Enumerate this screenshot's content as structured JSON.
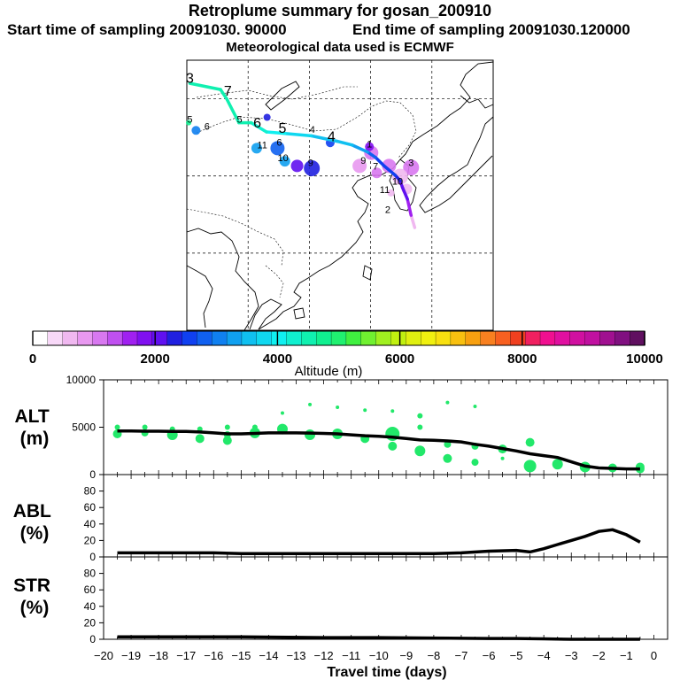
{
  "header": {
    "title": "Retroplume summary for gosan_200910",
    "start_sampling": "Start time of sampling 20091030. 90000",
    "end_sampling": "End time of sampling 20091030.120000",
    "met_data": "Meteorological data used is ECMWF"
  },
  "colorbar": {
    "ticks": [
      "0",
      "2000",
      "4000",
      "6000",
      "8000",
      "10000"
    ],
    "label": "Altitude (m)",
    "colors": [
      "#ffffff",
      "#f8d8f8",
      "#f0b8f0",
      "#e898f0",
      "#d878f0",
      "#c050f0",
      "#a020f0",
      "#8010f0",
      "#6010f0",
      "#2020e0",
      "#1040f0",
      "#1060f0",
      "#1080f0",
      "#10a0f0",
      "#10c0f0",
      "#10d8f0",
      "#10f0f0",
      "#10f0d0",
      "#10f0b0",
      "#10f090",
      "#20f070",
      "#40f040",
      "#70f030",
      "#a0f020",
      "#c0f010",
      "#e0f010",
      "#f0f010",
      "#f8e010",
      "#f8c010",
      "#f8a010",
      "#f88020",
      "#f86020",
      "#f04020",
      "#f02060",
      "#f01090",
      "#e010a0",
      "#d010a0",
      "#c010a0",
      "#a01090",
      "#801080",
      "#601060"
    ]
  },
  "map_labels": [
    {
      "text": "3",
      "lon": 90.5,
      "lat": 52.1
    },
    {
      "text": "7",
      "lon": 96.7,
      "lat": 50.4
    },
    {
      "text": "6",
      "lon": 101.5,
      "lat": 46.3
    },
    {
      "text": "5",
      "lon": 105.6,
      "lat": 45.6
    },
    {
      "text": "4",
      "lon": 113.6,
      "lat": 44.5
    },
    {
      "text": "4",
      "lon": 110.5,
      "lat": 45.6
    },
    {
      "text": "5",
      "lon": 90.5,
      "lat": 46.9
    },
    {
      "text": "6",
      "lon": 93.3,
      "lat": 46.0
    },
    {
      "text": "5",
      "lon": 98.6,
      "lat": 46.9
    },
    {
      "text": "11",
      "lon": 102.3,
      "lat": 43.6
    },
    {
      "text": "6",
      "lon": 105.1,
      "lat": 43.9
    },
    {
      "text": "10",
      "lon": 105.7,
      "lat": 41.9
    },
    {
      "text": "9",
      "lon": 110.2,
      "lat": 41.3
    },
    {
      "text": "1",
      "lon": 119.8,
      "lat": 43.7
    },
    {
      "text": "3",
      "lon": 126.6,
      "lat": 41.3
    },
    {
      "text": "9",
      "lon": 118.8,
      "lat": 41.6
    },
    {
      "text": "7",
      "lon": 120.8,
      "lat": 40.8
    },
    {
      "text": "10",
      "lon": 124.4,
      "lat": 38.9
    },
    {
      "text": "11",
      "lon": 122.3,
      "lat": 37.8
    },
    {
      "text": "2",
      "lon": 122.8,
      "lat": 35.2
    }
  ],
  "chart_data": [
    {
      "type": "map",
      "name": "retroplume trajectory",
      "projection": "lat-lon",
      "lon_range": [
        90,
        140
      ],
      "lat_range": [
        20,
        55
      ],
      "graticule_lon": [
        100,
        110,
        120,
        130
      ],
      "graticule_lat": [
        30,
        40,
        50
      ],
      "trajectory_lon": [
        127.2,
        126.6,
        126,
        125.2,
        124.8,
        124,
        122.2,
        120.8,
        119.5,
        117,
        114.5,
        110.3,
        106,
        103,
        100.5,
        98.5,
        96.5,
        95.5,
        90.5
      ],
      "trajectory_lat": [
        33.3,
        34.9,
        37,
        38.5,
        39.4,
        40.1,
        41.3,
        42.4,
        43.1,
        44.0,
        44.5,
        45.2,
        45.5,
        45.7,
        46.9,
        46.9,
        50.0,
        51.2,
        52.0
      ],
      "trajectory_alt": [
        450,
        700,
        1500,
        2000,
        2100,
        2300,
        2500,
        2600,
        2900,
        3200,
        3500,
        3600,
        3900,
        4100,
        4300,
        4400,
        4500,
        4550,
        4600
      ],
      "clusters": [
        {
          "lon": 126.6,
          "lat": 41.1,
          "alt": 1000,
          "size": 9
        },
        {
          "lon": 124.8,
          "lat": 39.9,
          "alt": 700,
          "size": 9
        },
        {
          "lon": 123.0,
          "lat": 41.3,
          "alt": 1200,
          "size": 8
        },
        {
          "lon": 120.1,
          "lat": 43.0,
          "alt": 1100,
          "size": 8
        },
        {
          "lon": 118.2,
          "lat": 41.3,
          "alt": 900,
          "size": 8
        },
        {
          "lon": 121.0,
          "lat": 40.4,
          "alt": 1000,
          "size": 6
        },
        {
          "lon": 125.9,
          "lat": 38.3,
          "alt": 600,
          "size": 6
        },
        {
          "lon": 123.3,
          "lat": 37.8,
          "alt": 500,
          "size": 4
        },
        {
          "lon": 119.8,
          "lat": 43.8,
          "alt": 1800,
          "size": 5
        },
        {
          "lon": 110.4,
          "lat": 41.0,
          "alt": 2200,
          "size": 9
        },
        {
          "lon": 108.0,
          "lat": 41.3,
          "alt": 2100,
          "size": 7
        },
        {
          "lon": 104.8,
          "lat": 43.6,
          "alt": 2700,
          "size": 8
        },
        {
          "lon": 106.0,
          "lat": 41.9,
          "alt": 3300,
          "size": 6
        },
        {
          "lon": 101.4,
          "lat": 43.6,
          "alt": 3400,
          "size": 6
        },
        {
          "lon": 91.5,
          "lat": 45.9,
          "alt": 3100,
          "size": 5
        },
        {
          "lon": 90.3,
          "lat": 46.9,
          "alt": 4800,
          "size": 3
        },
        {
          "lon": 103.1,
          "lat": 47.6,
          "alt": 2400,
          "size": 4
        },
        {
          "lon": 113.4,
          "lat": 44.3,
          "alt": 2500,
          "size": 5
        }
      ]
    },
    {
      "type": "line",
      "name": "ALT",
      "ylabel": "ALT\n(m)",
      "ylim": [
        0,
        10000
      ],
      "yticks": [
        0,
        5000,
        10000
      ],
      "x": [
        -19.5,
        -19,
        -18.5,
        -18,
        -17.5,
        -17,
        -16.5,
        -16,
        -15.5,
        -15,
        -14.5,
        -14,
        -13.5,
        -13,
        -12.5,
        -12,
        -11.5,
        -11,
        -10.5,
        -10,
        -9.5,
        -9,
        -8.5,
        -8,
        -7.5,
        -7,
        -6.5,
        -6,
        -5.5,
        -5,
        -4.5,
        -4,
        -3.5,
        -3,
        -2.5,
        -2,
        -1.5,
        -1,
        -0.5
      ],
      "values": [
        4600,
        4600,
        4580,
        4580,
        4560,
        4550,
        4500,
        4400,
        4300,
        4300,
        4350,
        4400,
        4400,
        4400,
        4380,
        4350,
        4300,
        4200,
        4100,
        4050,
        3950,
        3800,
        3650,
        3620,
        3550,
        3450,
        3200,
        3000,
        2750,
        2500,
        2200,
        2000,
        1800,
        1350,
        900,
        700,
        650,
        600,
        600
      ],
      "scatter_x": [
        -19.5,
        -19.5,
        -18.5,
        -18.5,
        -17.5,
        -17.5,
        -17.5,
        -16.5,
        -16.5,
        -15.5,
        -15.5,
        -15.5,
        -14.5,
        -14.5,
        -13.5,
        -13.5,
        -12.5,
        -12.5,
        -11.5,
        -11.5,
        -10.5,
        -10.5,
        -9.5,
        -9.5,
        -9.5,
        -8.5,
        -8.5,
        -8.5,
        -7.5,
        -7.5,
        -7.5,
        -6.5,
        -6.5,
        -6.5,
        -5.5,
        -5.5,
        -4.5,
        -4.5,
        -3.5,
        -2.5,
        -1.5,
        -0.5,
        -0.5
      ],
      "scatter_y": [
        4300,
        5000,
        4400,
        5000,
        4200,
        4800,
        4400,
        3800,
        4800,
        3600,
        4200,
        5000,
        4400,
        5000,
        4800,
        6500,
        7400,
        4200,
        7100,
        4300,
        6800,
        3800,
        4300,
        3000,
        6700,
        6200,
        2500,
        5000,
        3200,
        1700,
        7600,
        1300,
        3000,
        7200,
        2700,
        1700,
        3400,
        900,
        1100,
        800,
        700,
        600,
        800
      ],
      "scatter_size": [
        5,
        3,
        4,
        3,
        6,
        3,
        4,
        5,
        3,
        5,
        4,
        3,
        6,
        3,
        6,
        2,
        2,
        6,
        2,
        6,
        2,
        5,
        8,
        5,
        2,
        3,
        6,
        3,
        4,
        5,
        2,
        4,
        4,
        2,
        5,
        2,
        5,
        7,
        6,
        6,
        5,
        5,
        5
      ],
      "color": "#22e86a"
    },
    {
      "type": "line",
      "name": "ABL",
      "ylabel": "ABL\n(%)",
      "ylim": [
        0,
        100
      ],
      "yticks": [
        0,
        20,
        40,
        60,
        80
      ],
      "x": [
        -19.5,
        -18,
        -16,
        -15,
        -14,
        -12,
        -10,
        -8,
        -7,
        -6,
        -5,
        -4.5,
        -4,
        -3.5,
        -3,
        -2.5,
        -2,
        -1.5,
        -1,
        -0.5
      ],
      "values": [
        5,
        5,
        5,
        4,
        4,
        4,
        4,
        4,
        5,
        7,
        8,
        6,
        10,
        15,
        20,
        25,
        31,
        33,
        27,
        18
      ]
    },
    {
      "type": "line",
      "name": "STR",
      "ylabel": "STR\n(%)",
      "ylim": [
        0,
        100
      ],
      "yticks": [
        0,
        20,
        40,
        60,
        80
      ],
      "x": [
        -19.5,
        -17,
        -15,
        -12,
        -10,
        -8,
        -6,
        -5,
        -4,
        -3,
        -2,
        -1,
        -0.5
      ],
      "values": [
        3,
        3,
        3,
        2,
        2,
        1.5,
        1,
        1,
        0.5,
        0,
        0,
        0,
        0
      ]
    }
  ],
  "xaxis": {
    "label": "Travel time (days)",
    "ticks": [
      "−20",
      "−19",
      "−18",
      "−17",
      "−16",
      "−15",
      "−14",
      "−13",
      "−12",
      "−11",
      "−10",
      "−9",
      "−8",
      "−7",
      "−6",
      "−5",
      "−4",
      "−3",
      "−2",
      "−1",
      "0"
    ]
  }
}
